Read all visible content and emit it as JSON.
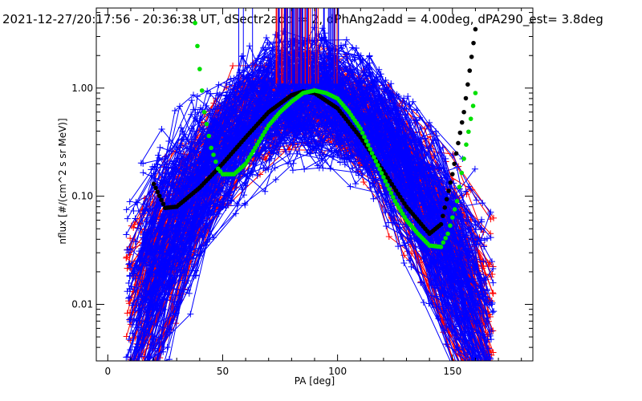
{
  "chart_data": {
    "type": "scatter",
    "title": "2021-12-27/20:17:56 - 20:36:38 UT, dSectr2add = 2, dPhAng2add = 4.00deg, dPA290_est=    3.8deg",
    "xlabel": "PA [deg]",
    "ylabel": "nflux [#/(cm^2 s sr MeV)]",
    "x_scale": "linear",
    "y_scale": "log",
    "xlim": [
      -5,
      185
    ],
    "ylim": [
      0.003,
      5.5
    ],
    "x_ticks": [
      0,
      50,
      100,
      150
    ],
    "x_tick_labels": [
      "0",
      "50",
      "100",
      "150"
    ],
    "y_ticks": [
      0.01,
      0.1,
      1.0
    ],
    "y_tick_labels": [
      "0.01",
      "0.10",
      "1.00"
    ],
    "grid": false,
    "legend": "none",
    "colors": {
      "blue_traces": "#0000ff",
      "red_traces": "#ff0000",
      "black_fit": "#000000",
      "green_fit": "#00e000"
    },
    "series": [
      {
        "color": "black",
        "style": "thick dots",
        "x": [
          20,
          25,
          30,
          40,
          50,
          60,
          70,
          80,
          85,
          90,
          100,
          110,
          120,
          130,
          140,
          145,
          150,
          155,
          160
        ],
        "y": [
          0.13,
          0.078,
          0.08,
          0.12,
          0.2,
          0.35,
          0.6,
          0.86,
          0.93,
          0.9,
          0.65,
          0.35,
          0.17,
          0.08,
          0.045,
          0.055,
          0.16,
          0.6,
          3.5
        ]
      },
      {
        "color": "green",
        "style": "thick dots",
        "x": [
          38,
          40,
          42,
          45,
          48,
          50,
          55,
          60,
          65,
          70,
          75,
          80,
          85,
          90,
          95,
          100,
          105,
          110,
          115,
          120,
          125,
          130,
          135,
          140,
          145,
          148,
          152,
          156,
          160
        ],
        "y": [
          4.0,
          1.5,
          0.6,
          0.28,
          0.18,
          0.16,
          0.16,
          0.2,
          0.3,
          0.45,
          0.6,
          0.75,
          0.9,
          0.95,
          0.9,
          0.8,
          0.6,
          0.42,
          0.25,
          0.15,
          0.09,
          0.06,
          0.045,
          0.035,
          0.034,
          0.045,
          0.09,
          0.3,
          0.9
        ]
      }
    ]
  }
}
